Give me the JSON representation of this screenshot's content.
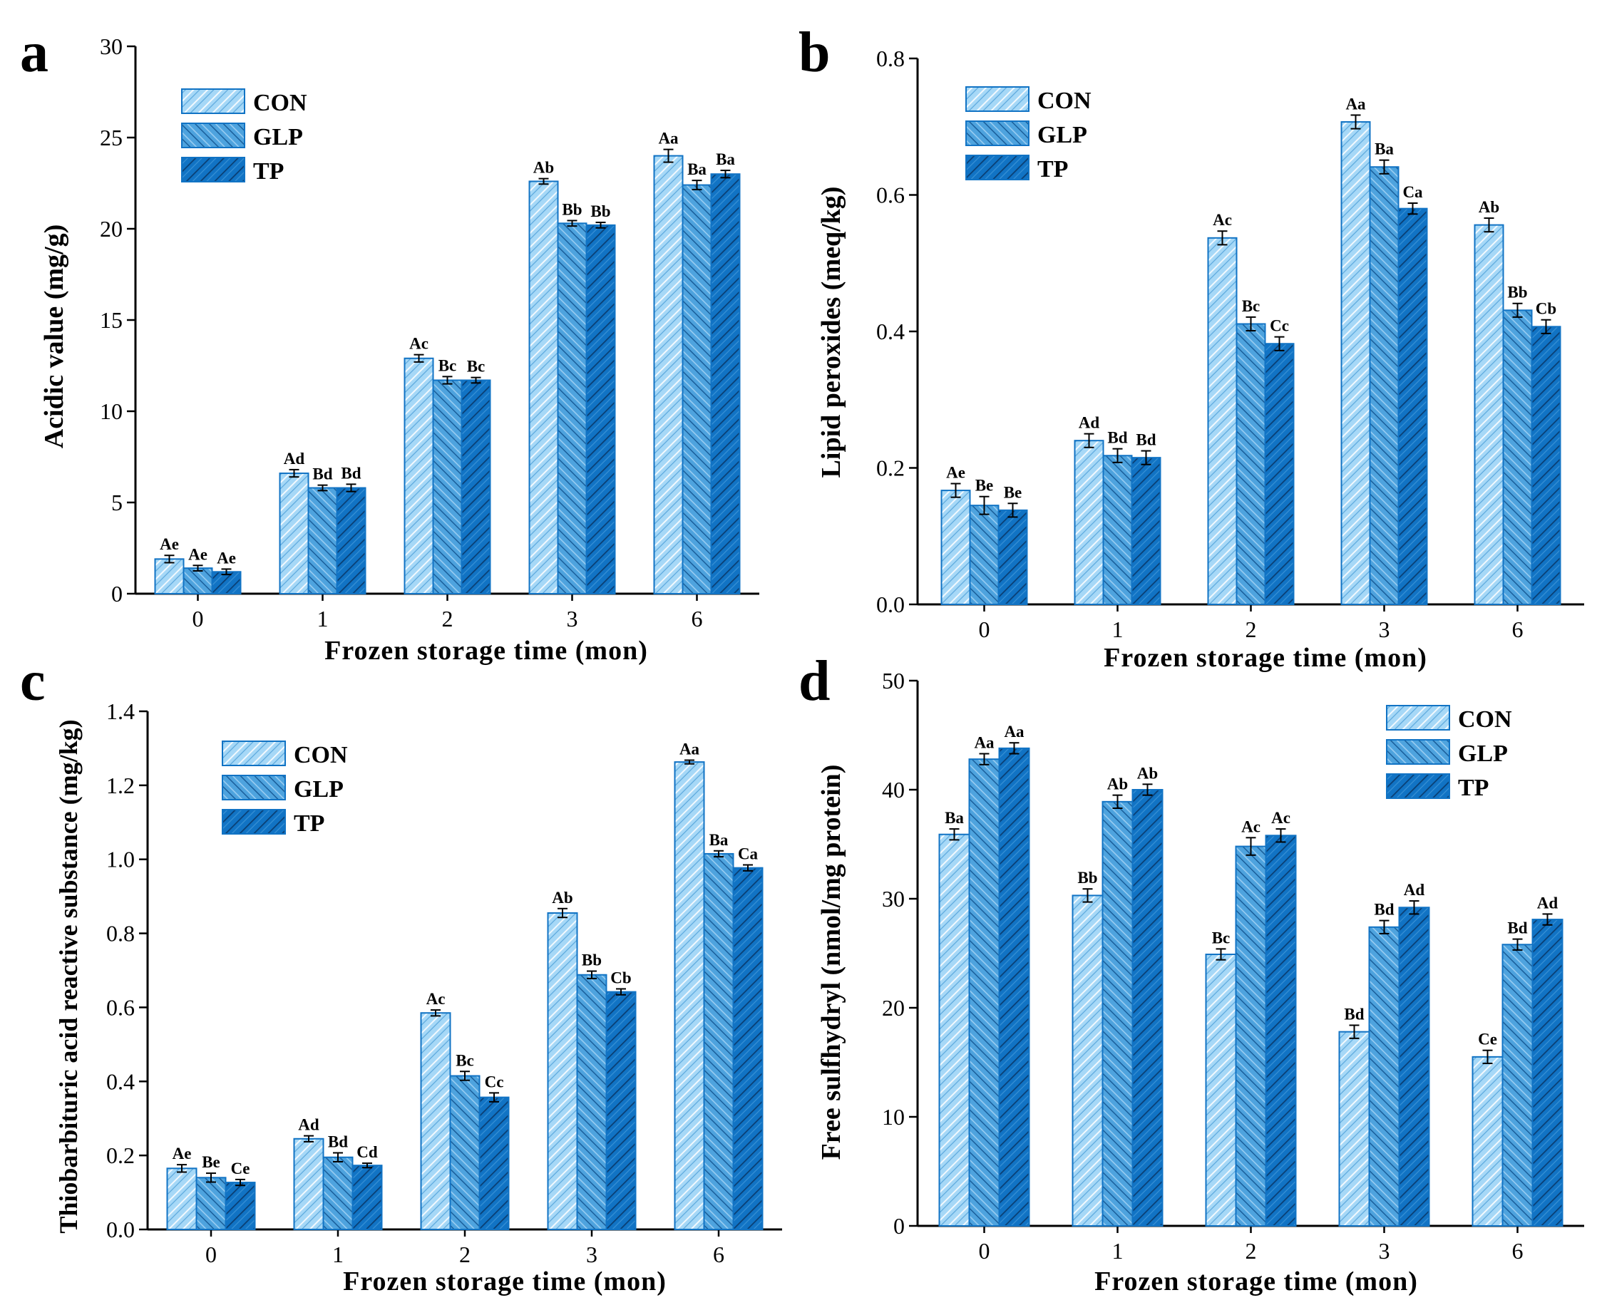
{
  "figure": {
    "groups": [
      "CON",
      "GLP",
      "TP"
    ],
    "colors": {
      "CON": "#a6d8f7",
      "GLP": "#4ea3de",
      "TP": "#1173c4",
      "hatch": "#0a3e72",
      "axis": "#000000"
    }
  },
  "chart_data": [
    {
      "panel_letter": "a",
      "type": "bar",
      "categories": [
        "0",
        "1",
        "2",
        "3",
        "6"
      ],
      "series": [
        {
          "name": "CON",
          "values": [
            1.9,
            6.6,
            12.9,
            22.6,
            24.0
          ],
          "errors": [
            0.2,
            0.2,
            0.2,
            0.15,
            0.35
          ],
          "labels": [
            "Ae",
            "Ad",
            "Ac",
            "Ab",
            "Aa"
          ]
        },
        {
          "name": "GLP",
          "values": [
            1.4,
            5.8,
            11.7,
            20.3,
            22.4
          ],
          "errors": [
            0.15,
            0.15,
            0.2,
            0.15,
            0.25
          ],
          "labels": [
            "Ae",
            "Bd",
            "Bc",
            "Bb",
            "Ba"
          ]
        },
        {
          "name": "TP",
          "values": [
            1.2,
            5.8,
            11.7,
            20.2,
            23.0
          ],
          "errors": [
            0.15,
            0.2,
            0.15,
            0.15,
            0.2
          ],
          "labels": [
            "Ae",
            "Bd",
            "Bc",
            "Bb",
            "Ba"
          ]
        }
      ],
      "xlabel": "Frozen storage time (mon)",
      "ylabel": "Acidic value (mg/g)",
      "ylim": [
        0,
        30
      ],
      "yticks": [
        "0",
        "5",
        "10",
        "15",
        "20",
        "25",
        "30"
      ],
      "legend": "top-left"
    },
    {
      "panel_letter": "b",
      "type": "bar",
      "categories": [
        "0",
        "1",
        "2",
        "3",
        "6"
      ],
      "series": [
        {
          "name": "CON",
          "values": [
            0.167,
            0.24,
            0.537,
            0.707,
            0.556
          ],
          "errors": [
            0.01,
            0.01,
            0.01,
            0.01,
            0.01
          ],
          "labels": [
            "Ae",
            "Ad",
            "Ac",
            "Aa",
            "Ab"
          ]
        },
        {
          "name": "GLP",
          "values": [
            0.145,
            0.218,
            0.411,
            0.641,
            0.431
          ],
          "errors": [
            0.013,
            0.01,
            0.01,
            0.01,
            0.01
          ],
          "labels": [
            "Be",
            "Bd",
            "Bc",
            "Ba",
            "Bb"
          ]
        },
        {
          "name": "TP",
          "values": [
            0.138,
            0.215,
            0.382,
            0.58,
            0.407
          ],
          "errors": [
            0.01,
            0.01,
            0.01,
            0.008,
            0.01
          ],
          "labels": [
            "Be",
            "Bd",
            "Cc",
            "Ca",
            "Cb"
          ]
        }
      ],
      "xlabel": "Frozen storage time (mon)",
      "ylabel": "Lipid peroxides (meq/kg)",
      "ylim": [
        0,
        0.8
      ],
      "yticks": [
        "0.0",
        "0.2",
        "0.4",
        "0.6",
        "0.8"
      ],
      "legend": "top-left"
    },
    {
      "panel_letter": "c",
      "type": "bar",
      "categories": [
        "0",
        "1",
        "2",
        "3",
        "6"
      ],
      "series": [
        {
          "name": "CON",
          "values": [
            0.165,
            0.245,
            0.585,
            0.855,
            1.263
          ],
          "errors": [
            0.01,
            0.008,
            0.008,
            0.012,
            0.005
          ],
          "labels": [
            "Ae",
            "Ad",
            "Ac",
            "Ab",
            "Aa"
          ]
        },
        {
          "name": "GLP",
          "values": [
            0.14,
            0.195,
            0.415,
            0.688,
            1.015
          ],
          "errors": [
            0.012,
            0.012,
            0.012,
            0.01,
            0.008
          ],
          "labels": [
            "Be",
            "Bd",
            "Bc",
            "Bb",
            "Ba"
          ]
        },
        {
          "name": "TP",
          "values": [
            0.127,
            0.173,
            0.357,
            0.642,
            0.977
          ],
          "errors": [
            0.008,
            0.006,
            0.012,
            0.008,
            0.008
          ],
          "labels": [
            "Ce",
            "Cd",
            "Cc",
            "Cb",
            "Ca"
          ]
        }
      ],
      "xlabel": "Frozen storage time (mon)",
      "ylabel": "Thiobarbituric acid reactive substance (mg/kg)",
      "ylim": [
        0,
        1.4
      ],
      "yticks": [
        "0.0",
        "0.2",
        "0.4",
        "0.6",
        "0.8",
        "1.0",
        "1.2",
        "1.4"
      ],
      "legend": "top-left"
    },
    {
      "panel_letter": "d",
      "type": "bar",
      "categories": [
        "0",
        "1",
        "2",
        "3",
        "6"
      ],
      "series": [
        {
          "name": "CON",
          "values": [
            35.9,
            30.3,
            24.9,
            17.8,
            15.5
          ],
          "errors": [
            0.5,
            0.6,
            0.5,
            0.6,
            0.6
          ],
          "labels": [
            "Ba",
            "Bb",
            "Bc",
            "Bd",
            "Ce"
          ]
        },
        {
          "name": "GLP",
          "values": [
            42.8,
            38.9,
            34.8,
            27.4,
            25.8
          ],
          "errors": [
            0.5,
            0.6,
            0.8,
            0.6,
            0.5
          ],
          "labels": [
            "Aa",
            "Ab",
            "Ac",
            "Bd",
            "Bd"
          ]
        },
        {
          "name": "TP",
          "values": [
            43.8,
            40.0,
            35.8,
            29.2,
            28.1
          ],
          "errors": [
            0.5,
            0.5,
            0.6,
            0.6,
            0.5
          ],
          "labels": [
            "Aa",
            "Ab",
            "Ac",
            "Ad",
            "Ad"
          ]
        }
      ],
      "xlabel": "Frozen storage time (mon)",
      "ylabel": "Free sulfhydryl (nmol/mg protein)",
      "ylim": [
        0,
        50
      ],
      "yticks": [
        "0",
        "10",
        "20",
        "30",
        "40",
        "50"
      ],
      "legend": "top-right"
    }
  ]
}
